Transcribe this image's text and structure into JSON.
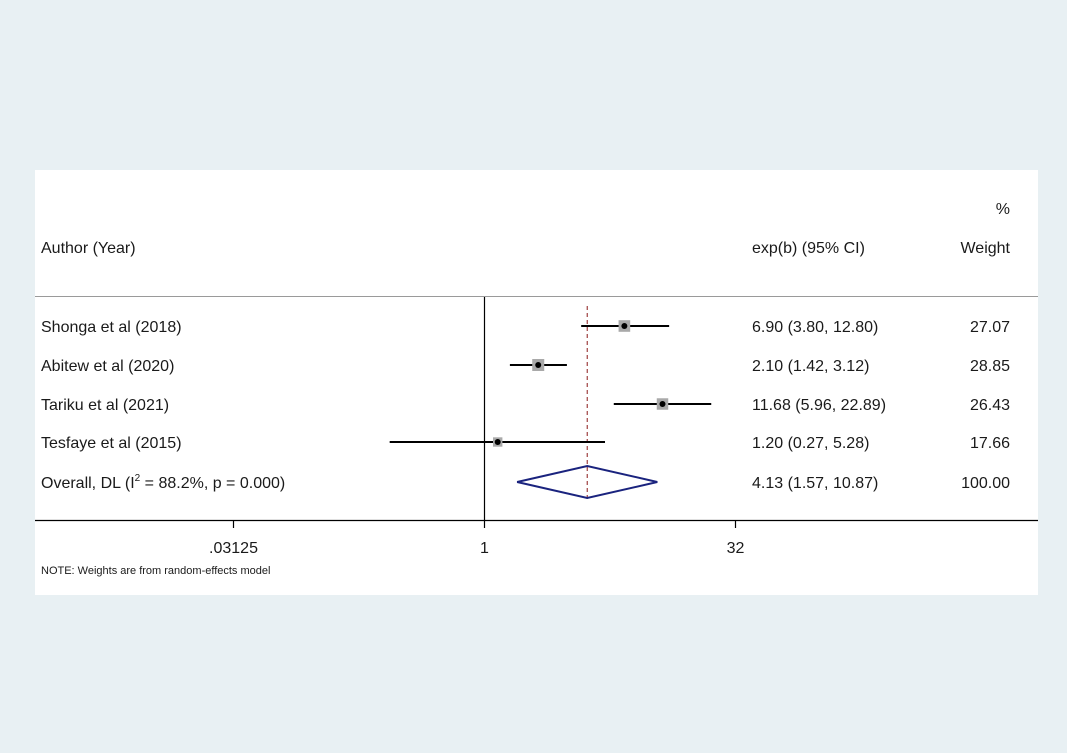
{
  "chart_data": {
    "type": "forest",
    "header": {
      "study_col": "Author (Year)",
      "effect_col": "exp(b) (95% CI)",
      "weight_col_line1": "%",
      "weight_col_line2": "Weight"
    },
    "studies": [
      {
        "label": "Shonga et al (2018)",
        "estimate": 6.9,
        "ci_low": 3.8,
        "ci_high": 12.8,
        "ci_text": "6.90 (3.80, 12.80)",
        "weight": 27.07,
        "weight_text": "27.07"
      },
      {
        "label": "Abitew et al (2020)",
        "estimate": 2.1,
        "ci_low": 1.42,
        "ci_high": 3.12,
        "ci_text": "2.10 (1.42, 3.12)",
        "weight": 28.85,
        "weight_text": "28.85"
      },
      {
        "label": "Tariku et al (2021)",
        "estimate": 11.68,
        "ci_low": 5.96,
        "ci_high": 22.89,
        "ci_text": "11.68 (5.96, 22.89)",
        "weight": 26.43,
        "weight_text": "26.43"
      },
      {
        "label": "Tesfaye et al (2015)",
        "estimate": 1.2,
        "ci_low": 0.27,
        "ci_high": 5.28,
        "ci_text": "1.20 (0.27, 5.28)",
        "weight": 17.66,
        "weight_text": "17.66"
      }
    ],
    "overall": {
      "label_prefix": "Overall, DL (I",
      "label_sup": "2",
      "label_suffix": " = 88.2%, p = 0.000)",
      "estimate": 4.13,
      "ci_low": 1.57,
      "ci_high": 10.87,
      "ci_text": "4.13 (1.57, 10.87)",
      "weight_text": "100.00"
    },
    "x_axis": {
      "scale": "log",
      "ticks": [
        0.03125,
        1,
        32
      ],
      "tick_labels": [
        ".03125",
        "1",
        "32"
      ]
    },
    "null_line": 1,
    "note": "NOTE: Weights are from random-effects model",
    "colors": {
      "ci_line": "#000000",
      "marker": "#000000",
      "weight_box": "#a9a9a9",
      "diamond": "#1a237e",
      "overall_line": "#8b1a1a",
      "background": "#e8f0f3",
      "panel": "#ffffff"
    }
  }
}
